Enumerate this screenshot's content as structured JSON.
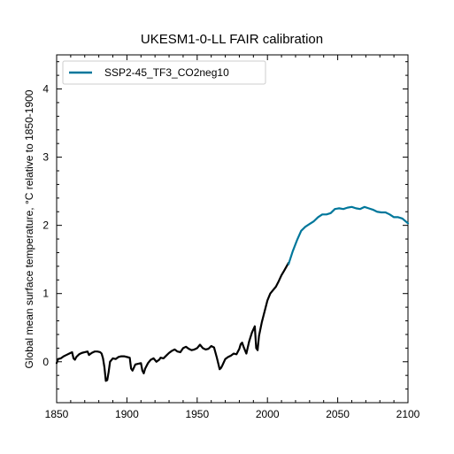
{
  "chart_data": {
    "type": "line",
    "title": "UKESM1-0-LL FAIR calibration",
    "xlabel": "",
    "ylabel": "Global mean surface temperature, °C relative to 1850-1900",
    "xlim": [
      1850,
      2100
    ],
    "ylim": [
      -0.6,
      4.5
    ],
    "xticks": [
      "1850",
      "1900",
      "1950",
      "2000",
      "2050",
      "2100"
    ],
    "yticks": [
      "0",
      "1",
      "2",
      "3",
      "4"
    ],
    "grid": false,
    "legend_position": "top-left",
    "series": [
      {
        "name": "",
        "color": "#000000",
        "x": [
          1850,
          1851,
          1853,
          1855,
          1857,
          1859,
          1861,
          1862,
          1863,
          1864,
          1866,
          1868,
          1870,
          1872,
          1873,
          1875,
          1877,
          1879,
          1881,
          1882,
          1883,
          1884,
          1885,
          1886,
          1887,
          1888,
          1890,
          1892,
          1894,
          1896,
          1898,
          1900,
          1902,
          1903,
          1904,
          1906,
          1908,
          1910,
          1911,
          1912,
          1913,
          1915,
          1917,
          1919,
          1921,
          1923,
          1924,
          1926,
          1928,
          1930,
          1932,
          1934,
          1936,
          1938,
          1940,
          1942,
          1944,
          1946,
          1948,
          1950,
          1952,
          1954,
          1956,
          1958,
          1960,
          1962,
          1964,
          1966,
          1967,
          1968,
          1970,
          1972,
          1974,
          1976,
          1978,
          1980,
          1981,
          1982,
          1983,
          1985,
          1987,
          1989,
          1991,
          1992,
          1993,
          1994,
          1996,
          1998,
          2000,
          2002,
          2004,
          2006,
          2008,
          2010,
          2012,
          2015
        ],
        "y": [
          -0.02,
          0.04,
          0.05,
          0.08,
          0.1,
          0.12,
          0.14,
          0.05,
          0.03,
          0.07,
          0.11,
          0.13,
          0.14,
          0.15,
          0.1,
          0.13,
          0.15,
          0.15,
          0.14,
          0.12,
          0.05,
          -0.08,
          -0.28,
          -0.27,
          -0.15,
          0.0,
          0.05,
          0.04,
          0.07,
          0.08,
          0.08,
          0.07,
          0.06,
          -0.1,
          -0.13,
          -0.04,
          -0.03,
          -0.02,
          -0.13,
          -0.17,
          -0.1,
          -0.02,
          0.03,
          0.05,
          0.0,
          0.03,
          0.06,
          0.05,
          0.09,
          0.13,
          0.16,
          0.18,
          0.15,
          0.14,
          0.2,
          0.22,
          0.19,
          0.17,
          0.18,
          0.2,
          0.25,
          0.2,
          0.18,
          0.19,
          0.23,
          0.21,
          0.06,
          -0.11,
          -0.09,
          -0.05,
          0.04,
          0.07,
          0.09,
          0.12,
          0.11,
          0.19,
          0.26,
          0.28,
          0.22,
          0.12,
          0.3,
          0.43,
          0.52,
          0.2,
          0.17,
          0.38,
          0.58,
          0.74,
          0.9,
          1.0,
          1.05,
          1.1,
          1.18,
          1.27,
          1.34,
          1.45
        ]
      },
      {
        "name": "SSP2-45_TF3_CO2neg10",
        "color": "#00779b",
        "x": [
          2015,
          2018,
          2021,
          2024,
          2027,
          2030,
          2033,
          2036,
          2039,
          2042,
          2045,
          2048,
          2051,
          2054,
          2057,
          2060,
          2063,
          2066,
          2069,
          2072,
          2075,
          2078,
          2081,
          2084,
          2087,
          2090,
          2093,
          2096,
          2100
        ],
        "y": [
          1.43,
          1.62,
          1.78,
          1.92,
          1.98,
          2.02,
          2.06,
          2.12,
          2.16,
          2.16,
          2.18,
          2.24,
          2.25,
          2.24,
          2.26,
          2.27,
          2.25,
          2.24,
          2.27,
          2.25,
          2.23,
          2.2,
          2.19,
          2.19,
          2.16,
          2.12,
          2.12,
          2.1,
          2.03
        ]
      }
    ]
  }
}
